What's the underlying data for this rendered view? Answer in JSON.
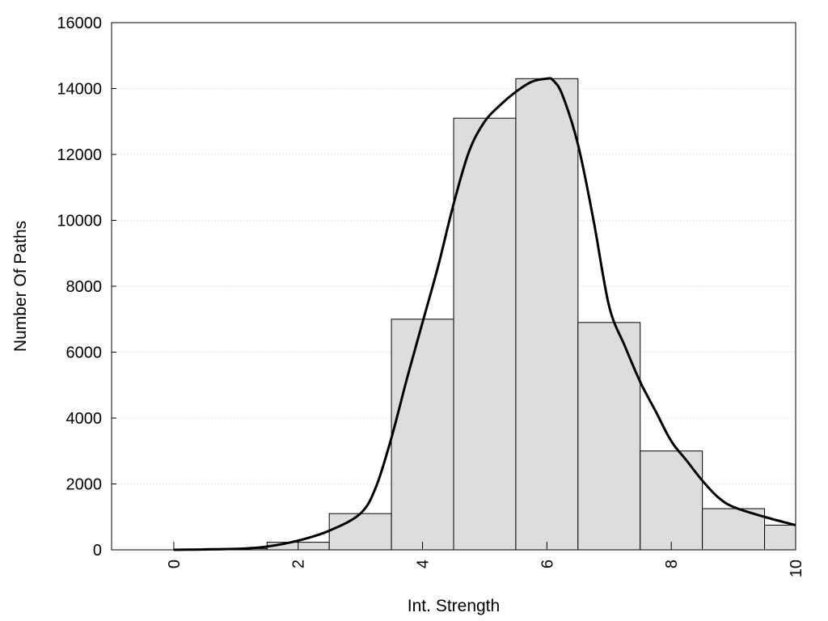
{
  "chart_data": {
    "type": "bar",
    "xlabel": "Int. Strength",
    "ylabel": "Number Of Paths",
    "xlim": [
      -1,
      10
    ],
    "ylim": [
      0,
      16000
    ],
    "x_ticks": [
      "0",
      "2",
      "4",
      "6",
      "8",
      "10"
    ],
    "y_ticks": [
      "0",
      "2000",
      "4000",
      "6000",
      "8000",
      "10000",
      "12000",
      "14000",
      "16000"
    ],
    "grid": "horizontal dotted",
    "legend": "none",
    "bar_color": "#dddddd",
    "curve_color": "#000000",
    "bins": [
      {
        "x": 0,
        "value": 0
      },
      {
        "x": 1,
        "value": 40
      },
      {
        "x": 2,
        "value": 230
      },
      {
        "x": 3,
        "value": 1100
      },
      {
        "x": 4,
        "value": 7000
      },
      {
        "x": 5,
        "value": 13100
      },
      {
        "x": 6,
        "value": 14300
      },
      {
        "x": 7,
        "value": 6900
      },
      {
        "x": 8,
        "value": 3000
      },
      {
        "x": 9,
        "value": 1250
      },
      {
        "x": 10,
        "value": 750
      }
    ],
    "curve": [
      {
        "x": 0,
        "y": 0
      },
      {
        "x": 1,
        "y": 30
      },
      {
        "x": 1.5,
        "y": 100
      },
      {
        "x": 2,
        "y": 280
      },
      {
        "x": 2.5,
        "y": 580
      },
      {
        "x": 3,
        "y": 1100
      },
      {
        "x": 3.25,
        "y": 1900
      },
      {
        "x": 3.5,
        "y": 3400
      },
      {
        "x": 3.75,
        "y": 5200
      },
      {
        "x": 4,
        "y": 6900
      },
      {
        "x": 4.25,
        "y": 8600
      },
      {
        "x": 4.5,
        "y": 10500
      },
      {
        "x": 4.75,
        "y": 12100
      },
      {
        "x": 5,
        "y": 13000
      },
      {
        "x": 5.25,
        "y": 13500
      },
      {
        "x": 5.5,
        "y": 13900
      },
      {
        "x": 5.75,
        "y": 14200
      },
      {
        "x": 6,
        "y": 14300
      },
      {
        "x": 6.1,
        "y": 14250
      },
      {
        "x": 6.25,
        "y": 13800
      },
      {
        "x": 6.5,
        "y": 12300
      },
      {
        "x": 6.75,
        "y": 10000
      },
      {
        "x": 7,
        "y": 7400
      },
      {
        "x": 7.25,
        "y": 6200
      },
      {
        "x": 7.5,
        "y": 5100
      },
      {
        "x": 7.75,
        "y": 4200
      },
      {
        "x": 8,
        "y": 3300
      },
      {
        "x": 8.25,
        "y": 2700
      },
      {
        "x": 8.5,
        "y": 2100
      },
      {
        "x": 8.75,
        "y": 1600
      },
      {
        "x": 9,
        "y": 1300
      },
      {
        "x": 9.5,
        "y": 1000
      },
      {
        "x": 10,
        "y": 750
      }
    ]
  }
}
